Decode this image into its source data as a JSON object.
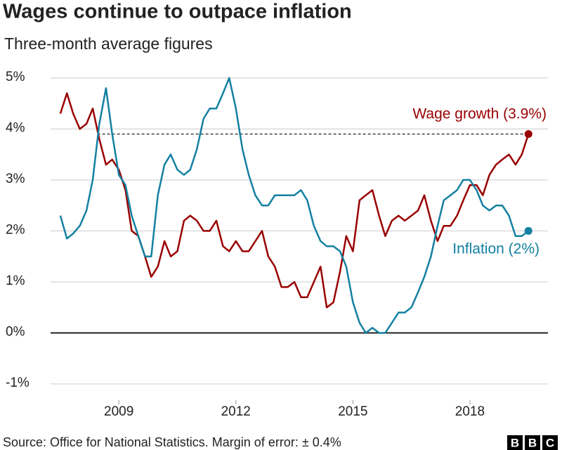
{
  "chart_data": {
    "type": "line",
    "title": "Wages continue to outpace inflation",
    "subtitle": "Three-month average figures",
    "source": "Source: Office for National Statistics. Margin of error: ± 0.4%",
    "logo": [
      "B",
      "B",
      "C"
    ],
    "x": [
      2007.5,
      2007.67,
      2007.83,
      2008,
      2008.17,
      2008.33,
      2008.5,
      2008.67,
      2008.83,
      2009,
      2009.17,
      2009.33,
      2009.5,
      2009.67,
      2009.83,
      2010,
      2010.17,
      2010.33,
      2010.5,
      2010.67,
      2010.83,
      2011,
      2011.17,
      2011.33,
      2011.5,
      2011.67,
      2011.83,
      2012,
      2012.17,
      2012.33,
      2012.5,
      2012.67,
      2012.83,
      2013,
      2013.17,
      2013.33,
      2013.5,
      2013.67,
      2013.83,
      2014,
      2014.17,
      2014.33,
      2014.5,
      2014.67,
      2014.83,
      2015,
      2015.17,
      2015.33,
      2015.5,
      2015.67,
      2015.83,
      2016,
      2016.17,
      2016.33,
      2016.5,
      2016.67,
      2016.83,
      2017,
      2017.17,
      2017.33,
      2017.5,
      2017.67,
      2017.83,
      2018,
      2018.17,
      2018.33,
      2018.5,
      2018.67,
      2018.83,
      2019,
      2019.17,
      2019.33,
      2019.5
    ],
    "series": [
      {
        "name": "Wage growth (3.9%)",
        "color": "#990000",
        "values": [
          4.3,
          4.7,
          4.3,
          4.0,
          4.1,
          4.4,
          3.8,
          3.3,
          3.4,
          3.2,
          2.8,
          2.0,
          1.9,
          1.5,
          1.1,
          1.3,
          1.8,
          1.5,
          1.6,
          2.2,
          2.3,
          2.2,
          2.0,
          2.0,
          2.2,
          1.7,
          1.6,
          1.8,
          1.6,
          1.6,
          1.8,
          2.0,
          1.5,
          1.3,
          0.9,
          0.9,
          1.0,
          0.7,
          0.7,
          1.0,
          1.3,
          0.5,
          0.6,
          1.2,
          1.9,
          1.6,
          2.6,
          2.7,
          2.8,
          2.3,
          1.9,
          2.2,
          2.3,
          2.2,
          2.3,
          2.4,
          2.7,
          2.2,
          1.8,
          2.1,
          2.1,
          2.3,
          2.6,
          2.9,
          2.9,
          2.7,
          3.1,
          3.3,
          3.4,
          3.5,
          3.3,
          3.5,
          3.9
        ]
      },
      {
        "name": "Inflation (2%)",
        "color": "#1380a1",
        "values": [
          2.3,
          1.85,
          1.95,
          2.1,
          2.4,
          3.0,
          4.1,
          4.8,
          3.9,
          3.1,
          2.9,
          2.3,
          1.9,
          1.5,
          1.5,
          2.7,
          3.3,
          3.5,
          3.2,
          3.1,
          3.2,
          3.6,
          4.2,
          4.4,
          4.4,
          4.7,
          5.0,
          4.4,
          3.6,
          3.1,
          2.7,
          2.5,
          2.5,
          2.7,
          2.7,
          2.7,
          2.7,
          2.8,
          2.6,
          2.1,
          1.8,
          1.7,
          1.7,
          1.6,
          1.3,
          0.6,
          0.2,
          0.0,
          0.1,
          0.0,
          0.0,
          0.2,
          0.4,
          0.4,
          0.5,
          0.8,
          1.1,
          1.5,
          2.1,
          2.6,
          2.7,
          2.8,
          3.0,
          3.0,
          2.8,
          2.5,
          2.4,
          2.5,
          2.5,
          2.3,
          1.9,
          1.9,
          2.0
        ]
      }
    ],
    "reference_line": {
      "value": 3.9,
      "x_start": 2008.45
    },
    "xlim": [
      2007.25,
      2020
    ],
    "xticks": [
      2009,
      2012,
      2015,
      2018
    ],
    "ylim": [
      -1.4,
      5.15
    ],
    "yticks": [
      {
        "value": -1,
        "label": "-1%"
      },
      {
        "value": 0,
        "label": "0%"
      },
      {
        "value": 1,
        "label": "1%"
      },
      {
        "value": 2,
        "label": "2%"
      },
      {
        "value": 3,
        "label": "3%"
      },
      {
        "value": 4,
        "label": "4%"
      },
      {
        "value": 5,
        "label": "5%"
      }
    ],
    "grid": true
  }
}
